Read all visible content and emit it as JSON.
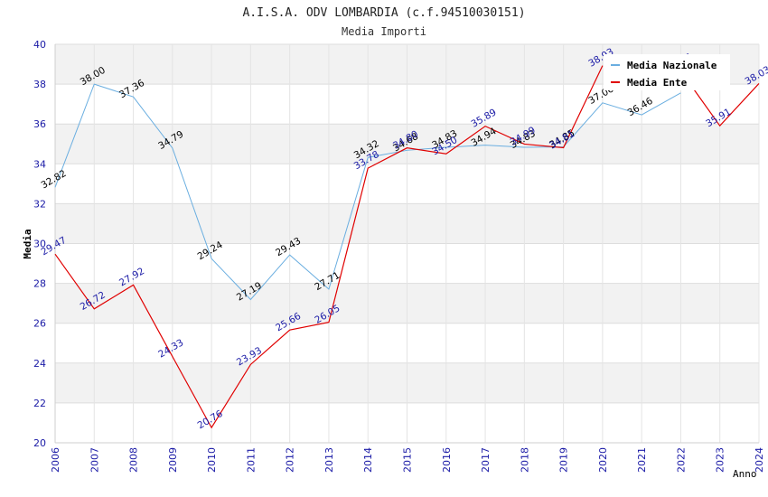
{
  "chart_data": {
    "type": "line",
    "title": "A.I.S.A. ODV LOMBARDIA (c.f.94510030151)",
    "subtitle": "Media Importi",
    "xlabel": "Anno",
    "ylabel": "Media",
    "ylim": [
      20,
      40
    ],
    "yticks": [
      "20",
      "22",
      "24",
      "26",
      "28",
      "30",
      "32",
      "34",
      "36",
      "38",
      "40"
    ],
    "categories": [
      "2006",
      "2007",
      "2008",
      "2009",
      "2010",
      "2011",
      "2012",
      "2013",
      "2014",
      "2015",
      "2016",
      "2017",
      "2018",
      "2019",
      "2020",
      "2021",
      "2022",
      "2023",
      "2024"
    ],
    "grid": true,
    "legend_position": "top-right",
    "series": [
      {
        "name": "Media Nazionale",
        "color": "#6aaee0",
        "label_color": "#000000",
        "values": [
          32.82,
          38.0,
          37.36,
          34.79,
          29.24,
          27.19,
          29.43,
          27.71,
          34.32,
          34.68,
          34.83,
          34.94,
          34.83,
          34.85,
          37.06,
          36.46,
          37.56,
          null,
          null
        ],
        "labels": [
          "32.82",
          "38.00",
          "37.36",
          "34.79",
          "29.24",
          "27.19",
          "29.43",
          "27.71",
          "34.32",
          "34.68",
          "34.83",
          "34.94",
          "34.83",
          "34.85",
          "37.06",
          "36.46",
          "",
          "",
          ""
        ]
      },
      {
        "name": "Media Ente",
        "color": "#e00000",
        "label_color": "#1a1aa6",
        "values": [
          29.47,
          26.72,
          27.92,
          24.33,
          20.76,
          23.93,
          25.66,
          26.05,
          33.78,
          34.8,
          34.5,
          35.89,
          34.99,
          34.81,
          38.93,
          null,
          38.66,
          35.91,
          38.03
        ],
        "labels": [
          "29.47",
          "26.72",
          "27.92",
          "24.33",
          "20.76",
          "23.93",
          "25.66",
          "26.05",
          "33.78",
          "34.80",
          "34.50",
          "35.89",
          "34.99",
          "34.81",
          "38.93",
          "",
          "38.66",
          "35.91",
          "38.03"
        ]
      }
    ]
  }
}
